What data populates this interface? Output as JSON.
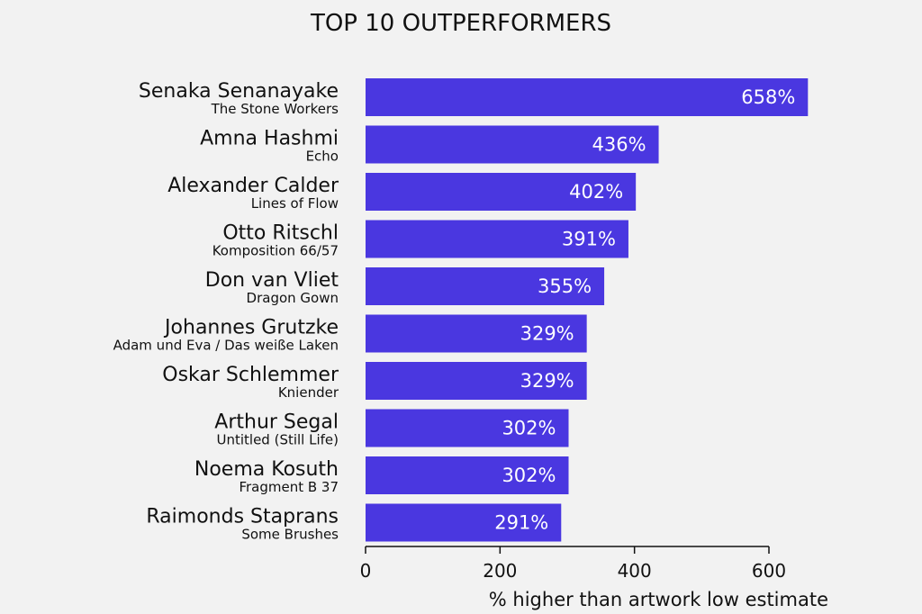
{
  "chart_data": {
    "type": "bar",
    "orientation": "horizontal",
    "title": "TOP 10 OUTPERFORMERS",
    "xlabel": "% higher than artwork low estimate",
    "ylabel": "",
    "xlim": [
      0,
      600
    ],
    "xticks": [
      0,
      200,
      400,
      600
    ],
    "grid": false,
    "bar_color": "#4a37e0",
    "categories": [
      {
        "artist": "Senaka Senanayake",
        "work": "The Stone Workers"
      },
      {
        "artist": "Amna Hashmi",
        "work": "Echo"
      },
      {
        "artist": "Alexander Calder",
        "work": "Lines of Flow"
      },
      {
        "artist": "Otto Ritschl",
        "work": "Komposition 66/57"
      },
      {
        "artist": "Don van Vliet",
        "work": "Dragon Gown"
      },
      {
        "artist": "Johannes Grutzke",
        "work": "Adam und Eva / Das weiße Laken"
      },
      {
        "artist": "Oskar Schlemmer",
        "work": "Kniender"
      },
      {
        "artist": "Arthur Segal",
        "work": "Untitled (Still Life)"
      },
      {
        "artist": "Noema Kosuth",
        "work": "Fragment B 37"
      },
      {
        "artist": "Raimonds Staprans",
        "work": "Some Brushes"
      }
    ],
    "values": [
      658,
      436,
      402,
      391,
      355,
      329,
      329,
      302,
      302,
      291
    ],
    "value_labels": [
      "658%",
      "436%",
      "402%",
      "391%",
      "355%",
      "329%",
      "329%",
      "302%",
      "302%",
      "291%"
    ]
  }
}
